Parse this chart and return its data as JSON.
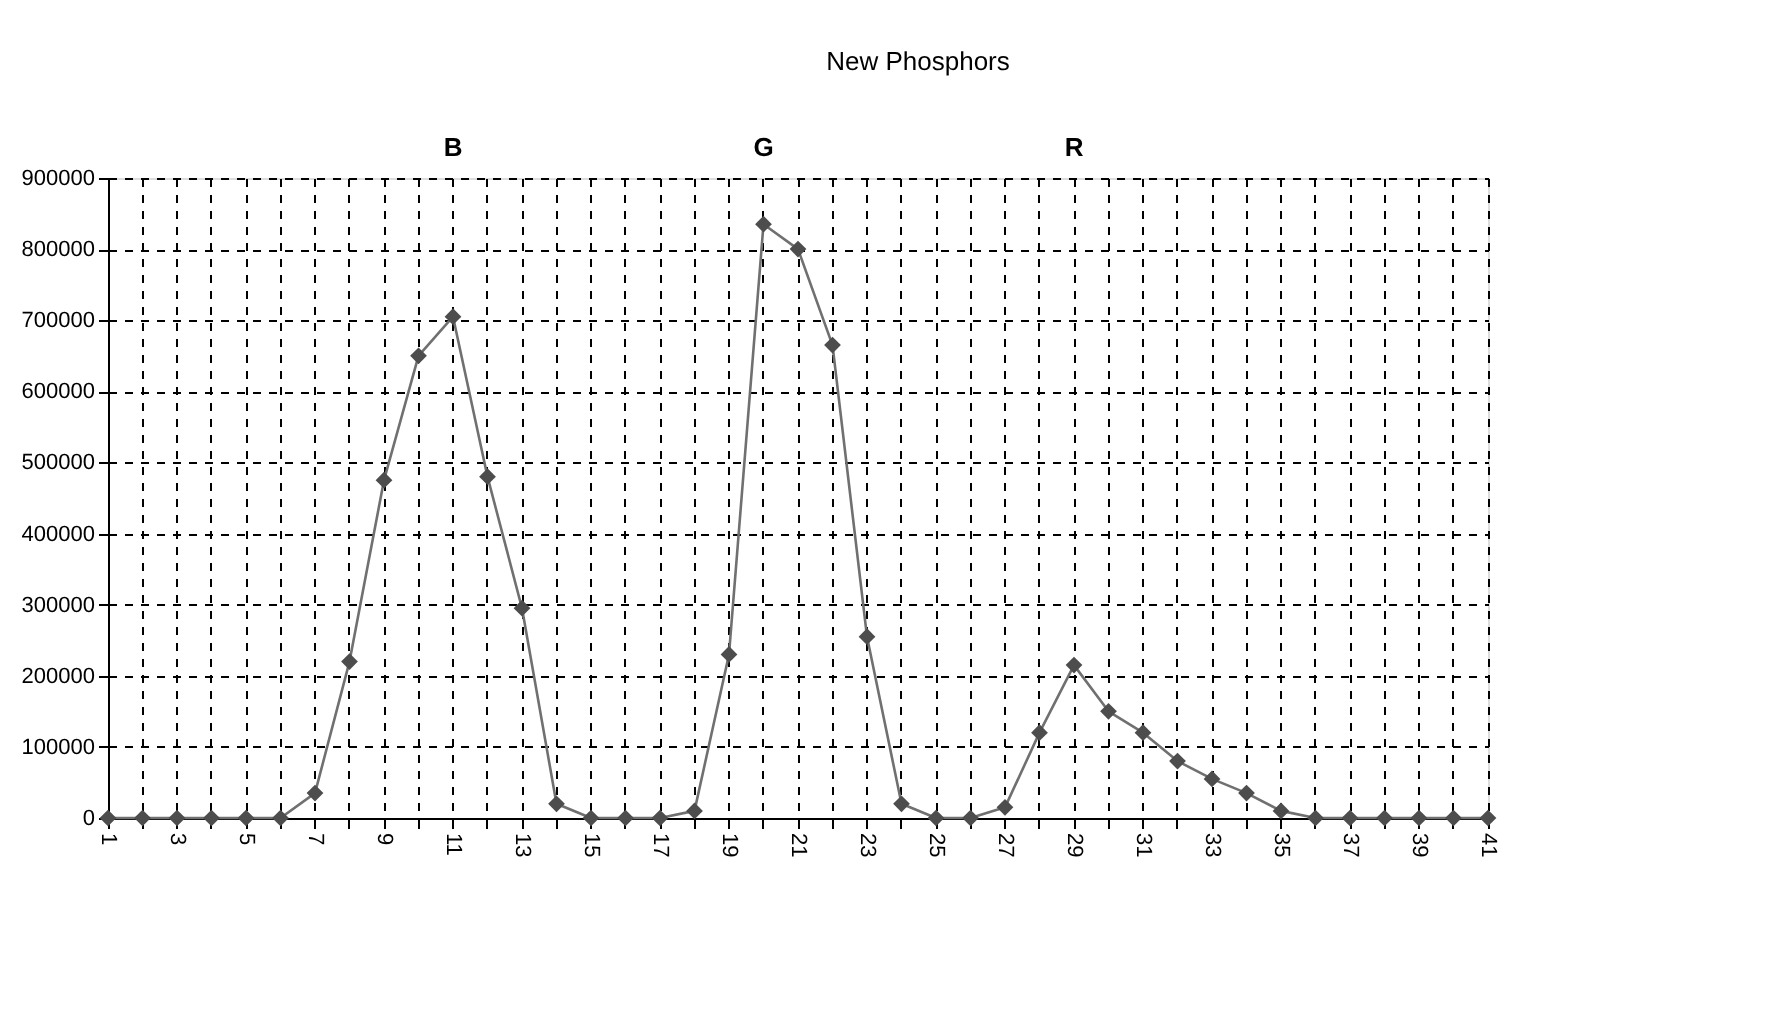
{
  "chart_data": {
    "type": "line",
    "title": "New Phosphors",
    "categories": [
      "1",
      null,
      "3",
      null,
      "5",
      null,
      "7",
      null,
      "9",
      null,
      "11",
      null,
      "13",
      null,
      "15",
      null,
      "17",
      null,
      "19",
      null,
      "21",
      null,
      "23",
      null,
      "25",
      null,
      "27",
      null,
      "29",
      null,
      "31",
      null,
      "33",
      null,
      "35",
      null,
      "37",
      null,
      "39",
      null,
      "41"
    ],
    "series": [
      {
        "color": "#707070",
        "values": [
          0,
          0,
          0,
          0,
          0,
          0,
          35000,
          220000,
          475000,
          650000,
          705000,
          480000,
          295000,
          20000,
          0,
          0,
          0,
          10000,
          230000,
          835000,
          800000,
          665000,
          255000,
          20000,
          0,
          0,
          15000,
          120000,
          215000,
          150000,
          120000,
          80000,
          55000,
          35000,
          10000,
          0,
          0,
          0,
          0,
          0,
          0
        ]
      }
    ],
    "ylim": [
      0,
      900000
    ],
    "yticks": [
      0,
      100000,
      200000,
      300000,
      400000,
      500000,
      600000,
      700000,
      800000,
      900000
    ],
    "grid": true,
    "marker": "diamond",
    "line_style": "solid",
    "annotations": [
      "B",
      "G",
      "R"
    ]
  }
}
